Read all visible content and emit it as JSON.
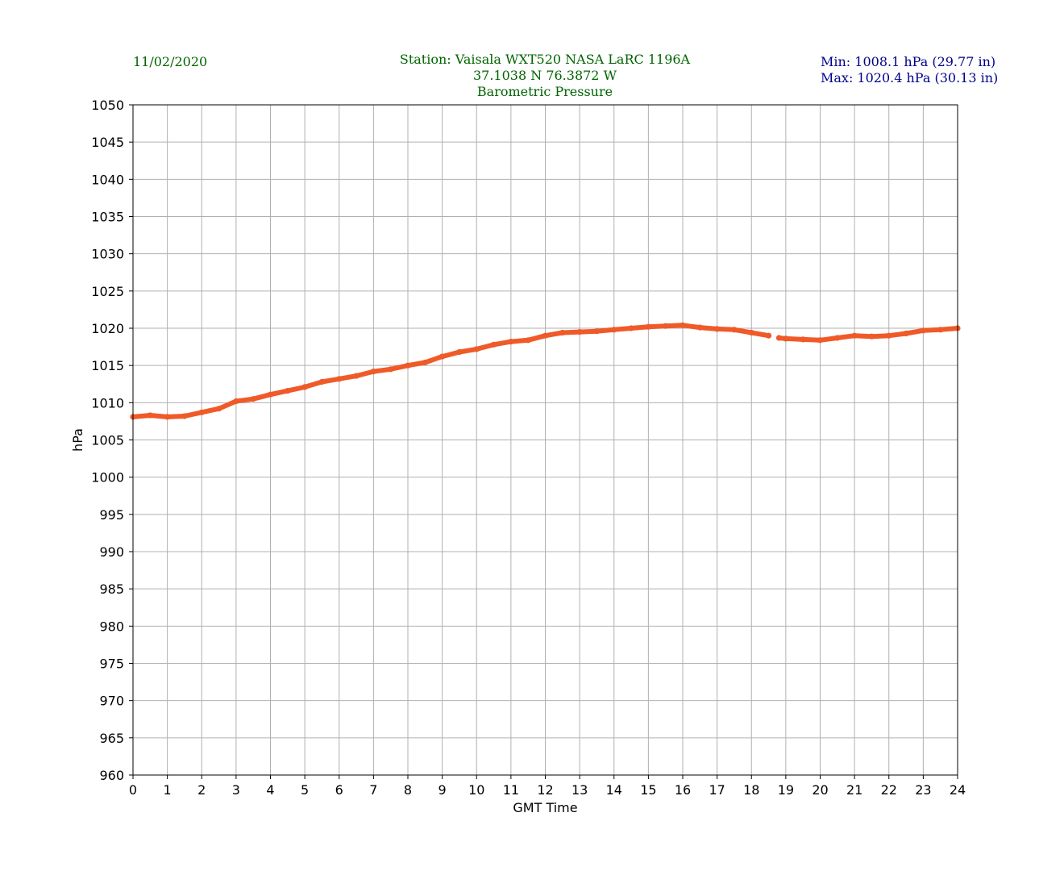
{
  "header": {
    "date": "11/02/2020",
    "station_line": "Station:  Vaisala WXT520  NASA LaRC 1196A",
    "coords_line": "37.1038 N 76.3872 W",
    "variable_line": "Barometric Pressure",
    "min_line": "Min: 1008.1 hPa (29.77 in)",
    "max_line": "Max: 1020.4 hPa (30.13 in)"
  },
  "colors": {
    "series": "#f05a28",
    "grid": "#b0b0b0",
    "title_green": "#006400",
    "stats_blue": "#00008b"
  },
  "chart_data": {
    "type": "scatter",
    "title": "Barometric Pressure",
    "xlabel": "GMT Time",
    "ylabel": "hPa",
    "xlim": [
      0,
      24
    ],
    "ylim": [
      960,
      1050
    ],
    "xticks": [
      0,
      1,
      2,
      3,
      4,
      5,
      6,
      7,
      8,
      9,
      10,
      11,
      12,
      13,
      14,
      15,
      16,
      17,
      18,
      19,
      20,
      21,
      22,
      23,
      24
    ],
    "yticks": [
      960,
      965,
      970,
      975,
      980,
      985,
      990,
      995,
      1000,
      1005,
      1010,
      1015,
      1020,
      1025,
      1030,
      1035,
      1040,
      1045,
      1050
    ],
    "grid": true,
    "series": [
      {
        "name": "",
        "x": [
          0,
          0.5,
          1,
          1.5,
          2,
          2.5,
          3,
          3.5,
          4,
          4.5,
          5,
          5.5,
          6,
          6.5,
          7,
          7.5,
          8,
          8.5,
          9,
          9.5,
          10,
          10.5,
          11,
          11.5,
          12,
          12.5,
          13,
          13.5,
          14,
          14.5,
          15,
          15.5,
          16,
          16.5,
          17,
          17.5,
          18,
          18.5,
          null,
          18.8,
          19,
          19.5,
          20,
          20.5,
          21,
          21.5,
          22,
          22.5,
          23,
          23.5,
          24
        ],
        "y": [
          1008.1,
          1008.3,
          1008.1,
          1008.2,
          1008.7,
          1009.2,
          1010.2,
          1010.5,
          1011.1,
          1011.6,
          1012.1,
          1012.8,
          1013.2,
          1013.6,
          1014.2,
          1014.5,
          1015.0,
          1015.4,
          1016.2,
          1016.8,
          1017.2,
          1017.8,
          1018.2,
          1018.4,
          1019.0,
          1019.4,
          1019.5,
          1019.6,
          1019.8,
          1020.0,
          1020.2,
          1020.3,
          1020.4,
          1020.1,
          1019.9,
          1019.8,
          1019.4,
          1019.0,
          null,
          1018.7,
          1018.6,
          1018.5,
          1018.4,
          1018.7,
          1019.0,
          1018.9,
          1019.0,
          1019.3,
          1019.7,
          1019.8,
          1020.0
        ]
      }
    ]
  }
}
